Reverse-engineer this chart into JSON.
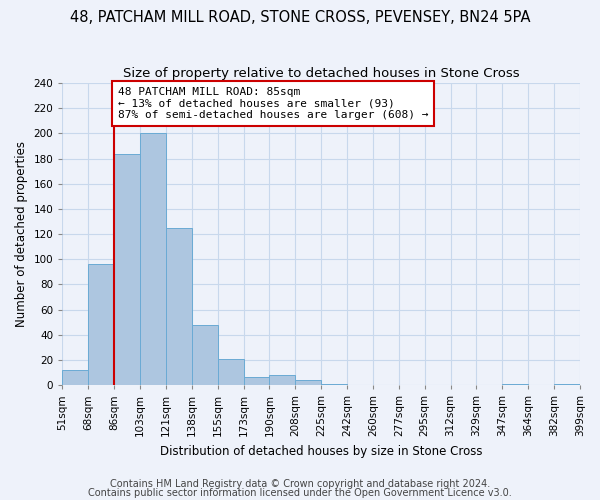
{
  "title": "48, PATCHAM MILL ROAD, STONE CROSS, PEVENSEY, BN24 5PA",
  "subtitle": "Size of property relative to detached houses in Stone Cross",
  "xlabel": "Distribution of detached houses by size in Stone Cross",
  "ylabel": "Number of detached properties",
  "bar_values": [
    12,
    96,
    184,
    200,
    125,
    48,
    21,
    6,
    8,
    4,
    1,
    0,
    0,
    0,
    0,
    0,
    0,
    1,
    0,
    1
  ],
  "bin_labels": [
    "51sqm",
    "68sqm",
    "86sqm",
    "103sqm",
    "121sqm",
    "138sqm",
    "155sqm",
    "173sqm",
    "190sqm",
    "208sqm",
    "225sqm",
    "242sqm",
    "260sqm",
    "277sqm",
    "295sqm",
    "312sqm",
    "329sqm",
    "347sqm",
    "364sqm",
    "382sqm",
    "399sqm"
  ],
  "bar_color": "#adc6e0",
  "bar_edge_color": "#6aaad4",
  "grid_color": "#c8d8ec",
  "background_color": "#eef2fa",
  "vline_x_index": 2,
  "vline_color": "#cc0000",
  "annotation_line1": "48 PATCHAM MILL ROAD: 85sqm",
  "annotation_line2": "← 13% of detached houses are smaller (93)",
  "annotation_line3": "87% of semi-detached houses are larger (608) →",
  "annotation_box_color": "white",
  "annotation_box_edge_color": "#cc0000",
  "ylim": [
    0,
    240
  ],
  "yticks": [
    0,
    20,
    40,
    60,
    80,
    100,
    120,
    140,
    160,
    180,
    200,
    220,
    240
  ],
  "footnote1": "Contains HM Land Registry data © Crown copyright and database right 2024.",
  "footnote2": "Contains public sector information licensed under the Open Government Licence v3.0.",
  "title_fontsize": 10.5,
  "subtitle_fontsize": 9.5,
  "xlabel_fontsize": 8.5,
  "ylabel_fontsize": 8.5,
  "tick_fontsize": 7.5,
  "annotation_fontsize": 8,
  "footnote_fontsize": 7
}
